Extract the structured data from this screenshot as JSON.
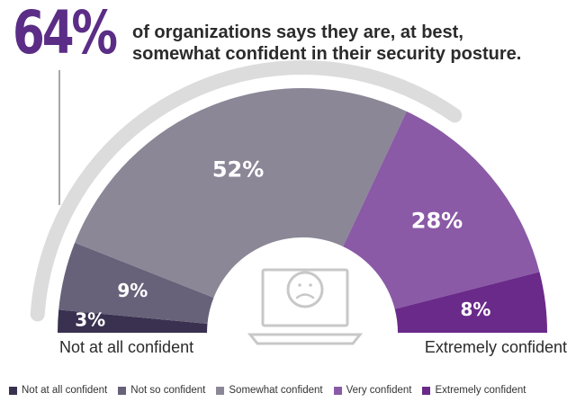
{
  "headline": {
    "number": "64%",
    "text": "of organizations says they are, at best, somewhat confident in their security posture."
  },
  "labels": {
    "left": "Not at all confident",
    "right": "Extremely confident"
  },
  "icons": {
    "center": "sad-face-laptop-icon"
  },
  "colors": {
    "accent": "#5b2d86",
    "track": "#dcdcdc",
    "icon": "#c8c8c8"
  },
  "chart_data": {
    "type": "pie",
    "shape": "semicircle-gauge",
    "categories": [
      "Not at all confident",
      "Not so confident",
      "Somewhat confident",
      "Very confident",
      "Extremely confident"
    ],
    "values": [
      3,
      9,
      52,
      28,
      8
    ],
    "value_labels": [
      "3%",
      "9%",
      "52%",
      "28%",
      "8%"
    ],
    "colors": [
      "#3a3150",
      "#67627a",
      "#8b8797",
      "#8a5aa6",
      "#6a2a8a"
    ],
    "legend": "bottom"
  }
}
